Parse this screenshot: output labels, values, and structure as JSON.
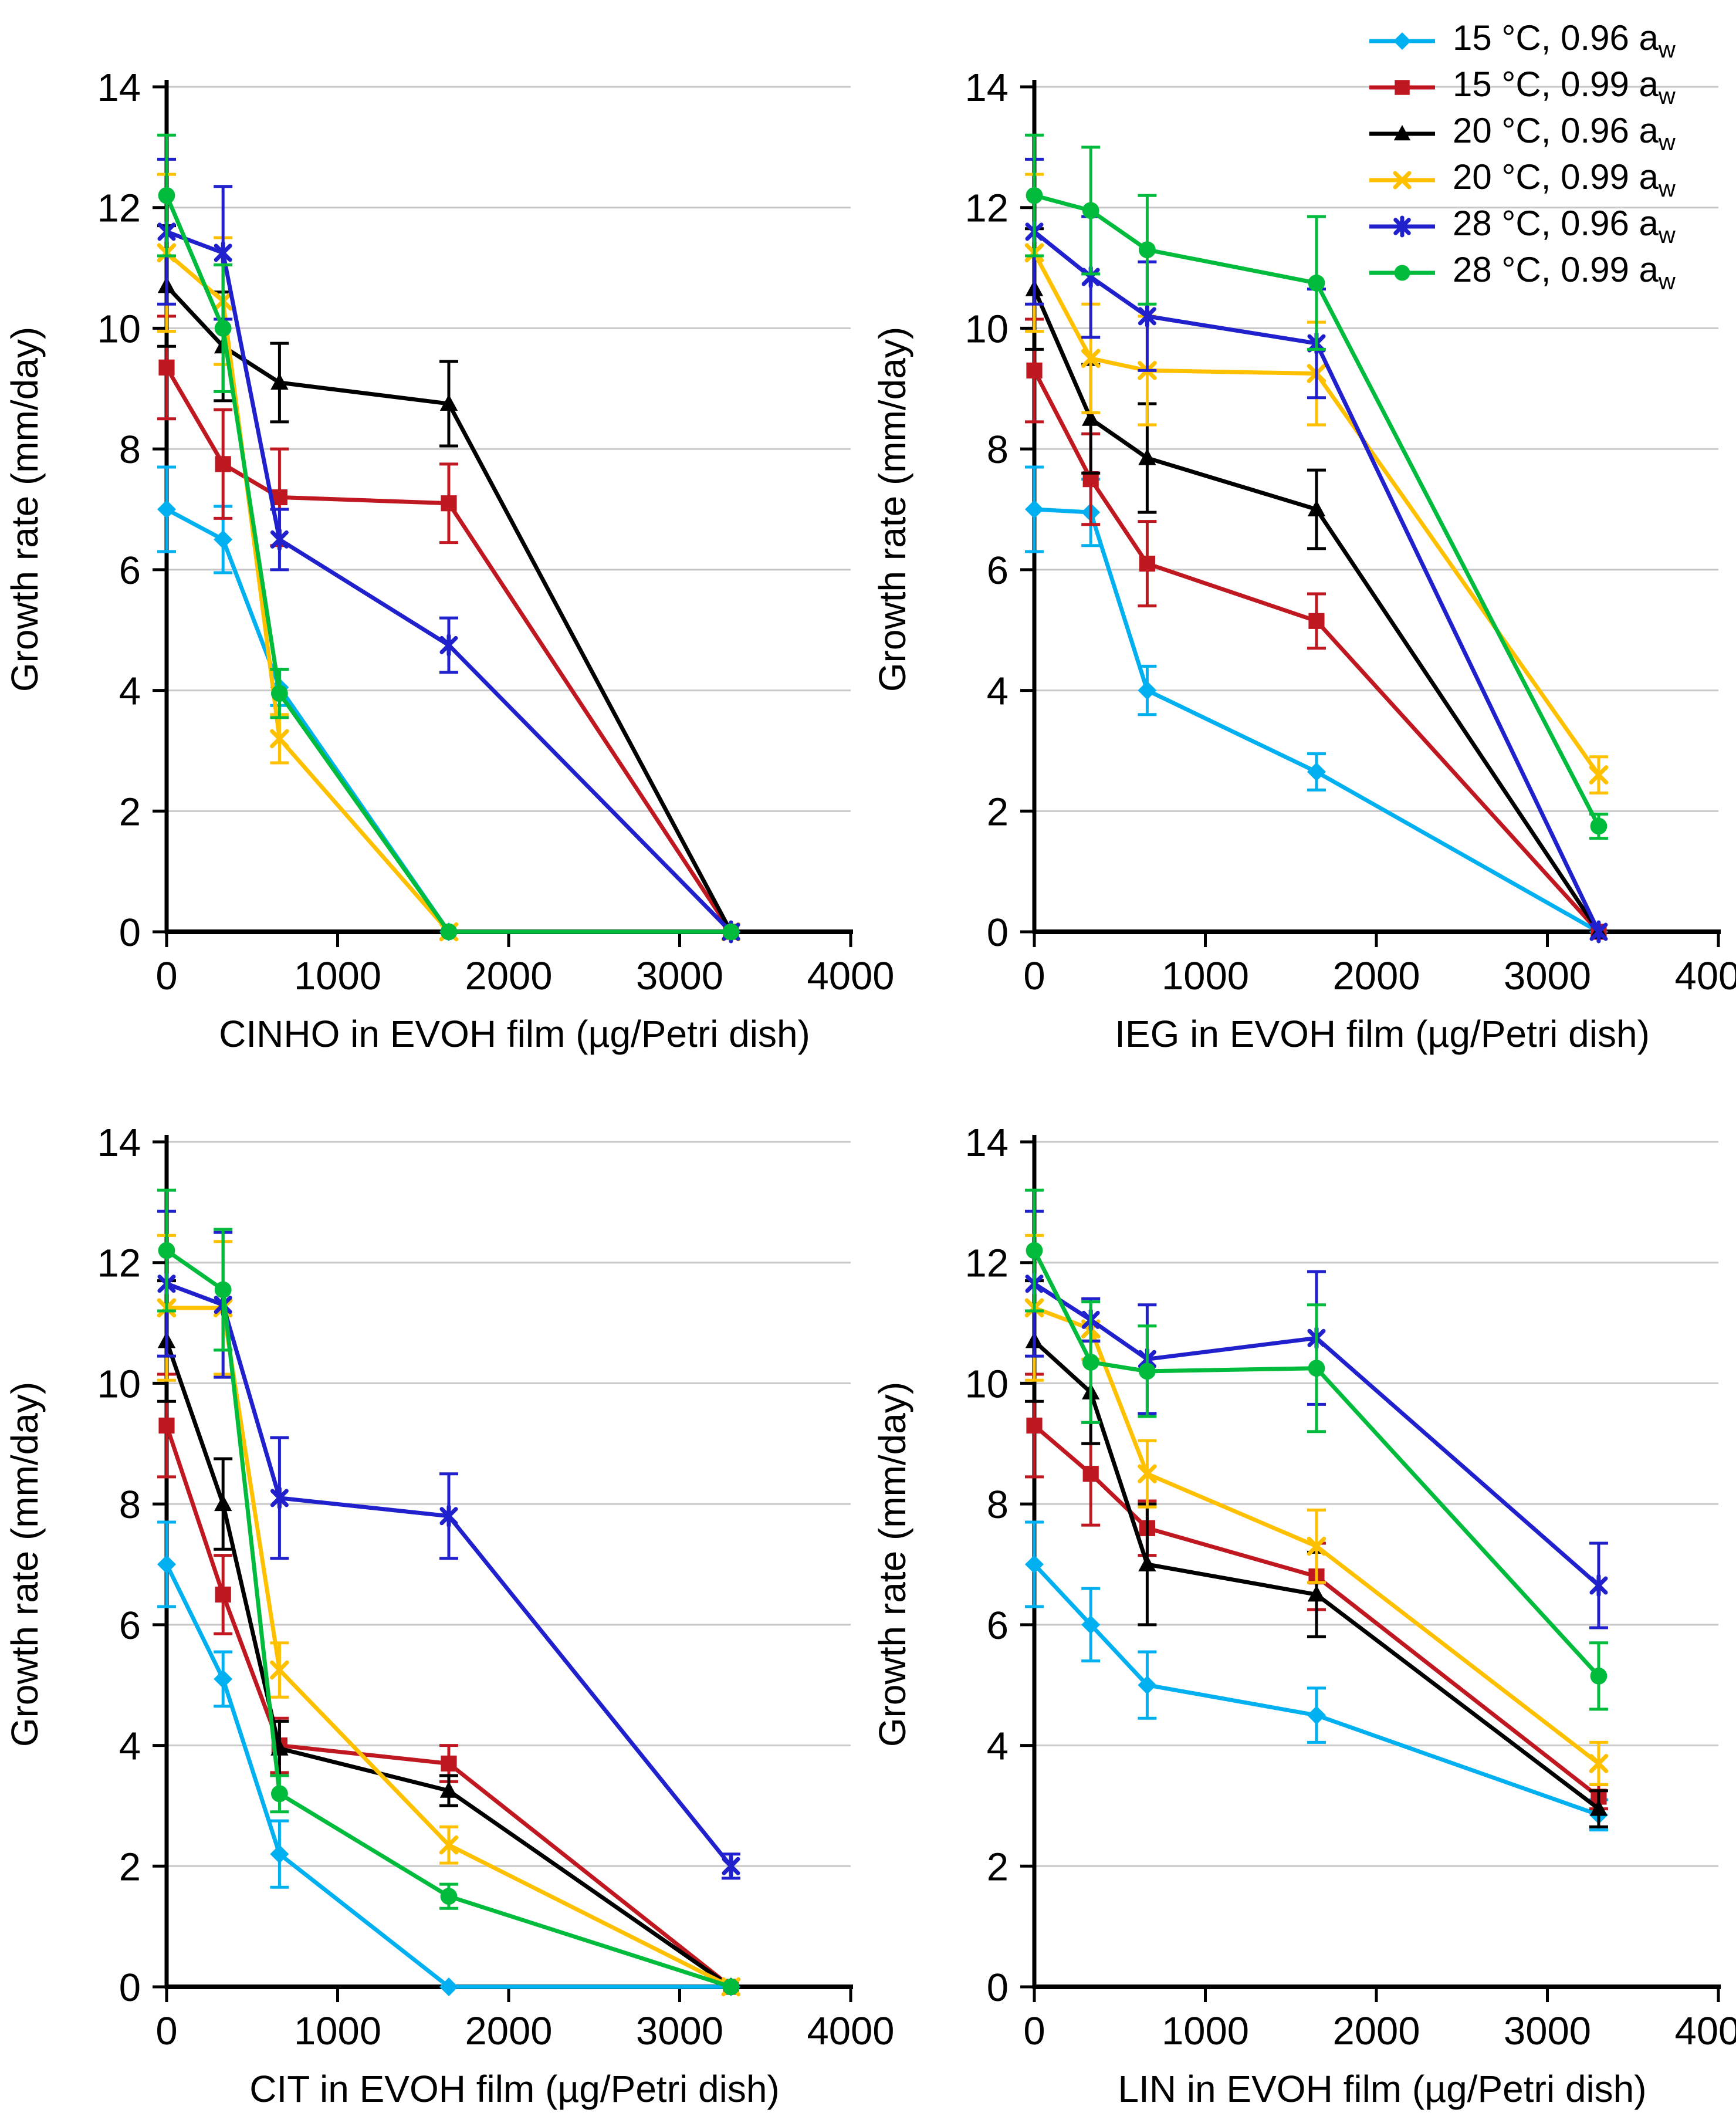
{
  "figure": {
    "background": "#FFFFFF",
    "ylabel": "Growth rate (mm/day)",
    "ylim": [
      0,
      14
    ],
    "yticks": [
      0,
      2,
      4,
      6,
      8,
      10,
      12,
      14
    ],
    "xlim": [
      0,
      4000
    ],
    "xticks": [
      0,
      1000,
      2000,
      3000,
      4000
    ],
    "grid": true,
    "grid_color": "#C8C8C8",
    "axis_color": "#000000",
    "legend_position": "top-right"
  },
  "legend": {
    "items": [
      {
        "label": "15 °C, 0.96 a",
        "sub": "w",
        "color": "#00B0F0",
        "marker": "diamond"
      },
      {
        "label": "15 °C, 0.99 a",
        "sub": "w",
        "color": "#C01820",
        "marker": "square"
      },
      {
        "label": "20 °C, 0.96 a",
        "sub": "w",
        "color": "#000000",
        "marker": "triangle"
      },
      {
        "label": "20 °C, 0.99 a",
        "sub": "w",
        "color": "#FFC000",
        "marker": "x"
      },
      {
        "label": "28 °C, 0.96 a",
        "sub": "w",
        "color": "#2020CC",
        "marker": "star"
      },
      {
        "label": "28 °C, 0.99 a",
        "sub": "w",
        "color": "#00BB3C",
        "marker": "circle"
      }
    ]
  },
  "chart_data": [
    {
      "type": "line",
      "id": "cinho",
      "xlabel": "CINHO in EVOH film (µg/Petri dish)",
      "ylabel": "Growth rate (mm/day)",
      "x": [
        0,
        330,
        660,
        1650,
        3300
      ],
      "series": [
        {
          "name": "15 °C, 0.96 aw",
          "color": "#00B0F0",
          "marker": "diamond",
          "values": [
            7.0,
            6.5,
            4.05,
            0,
            0
          ],
          "errors": [
            0.7,
            0.55,
            0.3,
            0,
            0
          ]
        },
        {
          "name": "15 °C, 0.99 aw",
          "color": "#C01820",
          "marker": "square",
          "values": [
            9.35,
            7.75,
            7.2,
            7.1,
            0
          ],
          "errors": [
            0.85,
            0.9,
            0.8,
            0.65,
            0
          ]
        },
        {
          "name": "20 °C, 0.96 aw",
          "color": "#000000",
          "marker": "triangle",
          "values": [
            10.7,
            9.7,
            9.1,
            8.75,
            0
          ],
          "errors": [
            1.0,
            0.9,
            0.65,
            0.7,
            0
          ]
        },
        {
          "name": "20 °C, 0.99 aw",
          "color": "#FFC000",
          "marker": "x",
          "values": [
            11.25,
            10.45,
            3.2,
            0,
            0
          ],
          "errors": [
            1.3,
            1.05,
            0.4,
            0,
            0
          ]
        },
        {
          "name": "28 °C, 0.96 aw",
          "color": "#2020CC",
          "marker": "star",
          "values": [
            11.6,
            11.25,
            6.5,
            4.75,
            0
          ],
          "errors": [
            1.2,
            1.1,
            0.5,
            0.45,
            0
          ]
        },
        {
          "name": "28 °C, 0.99 aw",
          "color": "#00BB3C",
          "marker": "circle",
          "values": [
            12.2,
            10.0,
            3.95,
            0,
            0
          ],
          "errors": [
            1.0,
            1.05,
            0.4,
            0,
            0
          ]
        }
      ]
    },
    {
      "type": "line",
      "id": "ieg",
      "xlabel": "IEG in EVOH film (µg/Petri dish)",
      "ylabel": "Growth rate (mm/day)",
      "x": [
        0,
        330,
        660,
        1650,
        3300
      ],
      "series": [
        {
          "name": "15 °C, 0.96 aw",
          "color": "#00B0F0",
          "marker": "diamond",
          "values": [
            7.0,
            6.95,
            4.0,
            2.65,
            0
          ],
          "errors": [
            0.7,
            0.55,
            0.4,
            0.3,
            0
          ]
        },
        {
          "name": "15 °C, 0.99 aw",
          "color": "#C01820",
          "marker": "square",
          "values": [
            9.3,
            7.5,
            6.1,
            5.15,
            0
          ],
          "errors": [
            0.85,
            0.75,
            0.7,
            0.45,
            0
          ]
        },
        {
          "name": "20 °C, 0.96 aw",
          "color": "#000000",
          "marker": "triangle",
          "values": [
            10.65,
            8.5,
            7.85,
            7.0,
            0
          ],
          "errors": [
            1.0,
            0.9,
            0.9,
            0.65,
            0
          ]
        },
        {
          "name": "20 °C, 0.99 aw",
          "color": "#FFC000",
          "marker": "x",
          "values": [
            11.25,
            9.5,
            9.3,
            9.25,
            2.6
          ],
          "errors": [
            1.3,
            0.9,
            0.9,
            0.85,
            0.3
          ]
        },
        {
          "name": "28 °C, 0.96 aw",
          "color": "#2020CC",
          "marker": "star",
          "values": [
            11.6,
            10.85,
            10.2,
            9.75,
            0
          ],
          "errors": [
            1.2,
            1.0,
            0.9,
            0.9,
            0
          ]
        },
        {
          "name": "28 °C, 0.99 aw",
          "color": "#00BB3C",
          "marker": "circle",
          "values": [
            12.2,
            11.95,
            11.3,
            10.75,
            1.75
          ],
          "errors": [
            1.0,
            1.05,
            0.9,
            1.1,
            0.2
          ]
        }
      ]
    },
    {
      "type": "line",
      "id": "cit",
      "xlabel": "CIT in EVOH film (µg/Petri dish)",
      "ylabel": "Growth rate (mm/day)",
      "x": [
        0,
        330,
        660,
        1650,
        3300
      ],
      "series": [
        {
          "name": "15 °C, 0.96 aw",
          "color": "#00B0F0",
          "marker": "diamond",
          "values": [
            7.0,
            5.1,
            2.2,
            0,
            0
          ],
          "errors": [
            0.7,
            0.45,
            0.55,
            0,
            0
          ]
        },
        {
          "name": "15 °C, 0.99 aw",
          "color": "#C01820",
          "marker": "square",
          "values": [
            9.3,
            6.5,
            4.0,
            3.7,
            0
          ],
          "errors": [
            0.85,
            0.65,
            0.45,
            0.3,
            0
          ]
        },
        {
          "name": "20 °C, 0.96 aw",
          "color": "#000000",
          "marker": "triangle",
          "values": [
            10.7,
            8.0,
            3.95,
            3.25,
            0
          ],
          "errors": [
            1.0,
            0.75,
            0.45,
            0.25,
            0
          ]
        },
        {
          "name": "20 °C, 0.99 aw",
          "color": "#FFC000",
          "marker": "x",
          "values": [
            11.25,
            11.25,
            5.25,
            2.35,
            0
          ],
          "errors": [
            1.2,
            1.1,
            0.45,
            0.3,
            0
          ]
        },
        {
          "name": "28 °C, 0.96 aw",
          "color": "#2020CC",
          "marker": "star",
          "values": [
            11.65,
            11.3,
            8.1,
            7.8,
            2.0
          ],
          "errors": [
            1.2,
            1.2,
            1.0,
            0.7,
            0.2
          ]
        },
        {
          "name": "28 °C, 0.99 aw",
          "color": "#00BB3C",
          "marker": "circle",
          "values": [
            12.2,
            11.55,
            3.2,
            1.5,
            0
          ],
          "errors": [
            1.0,
            1.0,
            0.3,
            0.2,
            0
          ]
        }
      ]
    },
    {
      "type": "line",
      "id": "lin",
      "xlabel": "LIN in EVOH film (µg/Petri dish)",
      "ylabel": "Growth rate (mm/day)",
      "x": [
        0,
        330,
        660,
        1650,
        3300
      ],
      "series": [
        {
          "name": "15 °C, 0.96 aw",
          "color": "#00B0F0",
          "marker": "diamond",
          "values": [
            7.0,
            6.0,
            5.0,
            4.5,
            2.85
          ],
          "errors": [
            0.7,
            0.6,
            0.55,
            0.45,
            0.25
          ]
        },
        {
          "name": "15 °C, 0.99 aw",
          "color": "#C01820",
          "marker": "square",
          "values": [
            9.3,
            8.5,
            7.6,
            6.8,
            3.15
          ],
          "errors": [
            0.85,
            0.85,
            0.45,
            0.55,
            0.2
          ]
        },
        {
          "name": "20 °C, 0.96 aw",
          "color": "#000000",
          "marker": "triangle",
          "values": [
            10.7,
            9.85,
            7.0,
            6.5,
            2.95
          ],
          "errors": [
            1.0,
            0.85,
            1.0,
            0.7,
            0.3
          ]
        },
        {
          "name": "20 °C, 0.99 aw",
          "color": "#FFC000",
          "marker": "x",
          "values": [
            11.25,
            10.9,
            8.5,
            7.3,
            3.7
          ],
          "errors": [
            1.2,
            0.5,
            0.55,
            0.6,
            0.35
          ]
        },
        {
          "name": "28 °C, 0.96 aw",
          "color": "#2020CC",
          "marker": "star",
          "values": [
            11.65,
            11.05,
            10.4,
            10.75,
            6.65
          ],
          "errors": [
            1.2,
            0.35,
            0.9,
            1.1,
            0.7
          ]
        },
        {
          "name": "28 °C, 0.99 aw",
          "color": "#00BB3C",
          "marker": "circle",
          "values": [
            12.2,
            10.35,
            10.2,
            10.25,
            5.15
          ],
          "errors": [
            1.0,
            1.0,
            0.75,
            1.05,
            0.55
          ]
        }
      ]
    }
  ]
}
